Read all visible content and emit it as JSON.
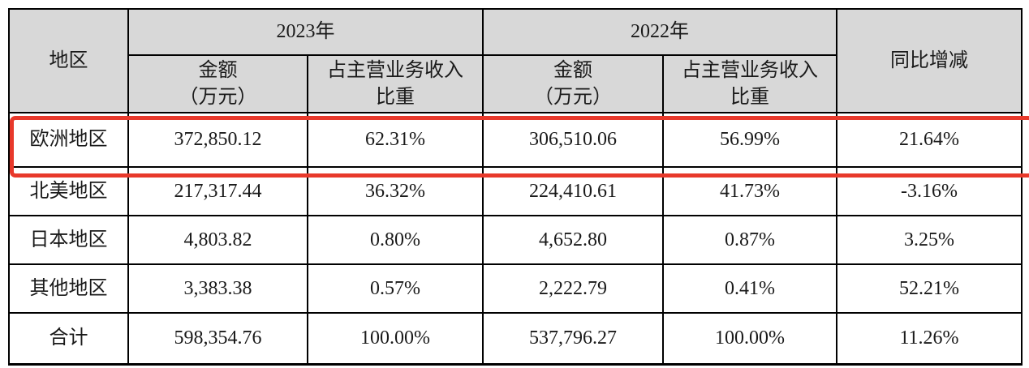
{
  "table": {
    "header": {
      "region": "地区",
      "year_2023": "2023年",
      "year_2022": "2022年",
      "yoy": "同比增减",
      "amount_line1": "金额",
      "amount_line2": "（万元）",
      "share_line1": "占主营业务收入",
      "share_line2": "比重"
    },
    "rows": [
      {
        "region": "欧洲地区",
        "amount_2023": "372,850.12",
        "share_2023": "62.31%",
        "amount_2022": "306,510.06",
        "share_2022": "56.99%",
        "yoy": "21.64%",
        "highlighted": true
      },
      {
        "region": "北美地区",
        "amount_2023": "217,317.44",
        "share_2023": "36.32%",
        "amount_2022": "224,410.61",
        "share_2022": "41.73%",
        "yoy": "-3.16%",
        "highlighted": false
      },
      {
        "region": "日本地区",
        "amount_2023": "4,803.82",
        "share_2023": "0.80%",
        "amount_2022": "4,652.80",
        "share_2022": "0.87%",
        "yoy": "3.25%",
        "highlighted": false
      },
      {
        "region": "其他地区",
        "amount_2023": "3,383.38",
        "share_2023": "0.57%",
        "amount_2022": "2,222.79",
        "share_2022": "0.41%",
        "yoy": "52.21%",
        "highlighted": false
      },
      {
        "region": "合计",
        "amount_2023": "598,354.76",
        "share_2023": "100.00%",
        "amount_2022": "537,796.27",
        "share_2022": "100.00%",
        "yoy": "11.26%",
        "highlighted": false
      }
    ],
    "colors": {
      "header_bg": "#d8d8d8",
      "border": "#000000",
      "highlight_border": "#e8392b"
    }
  }
}
